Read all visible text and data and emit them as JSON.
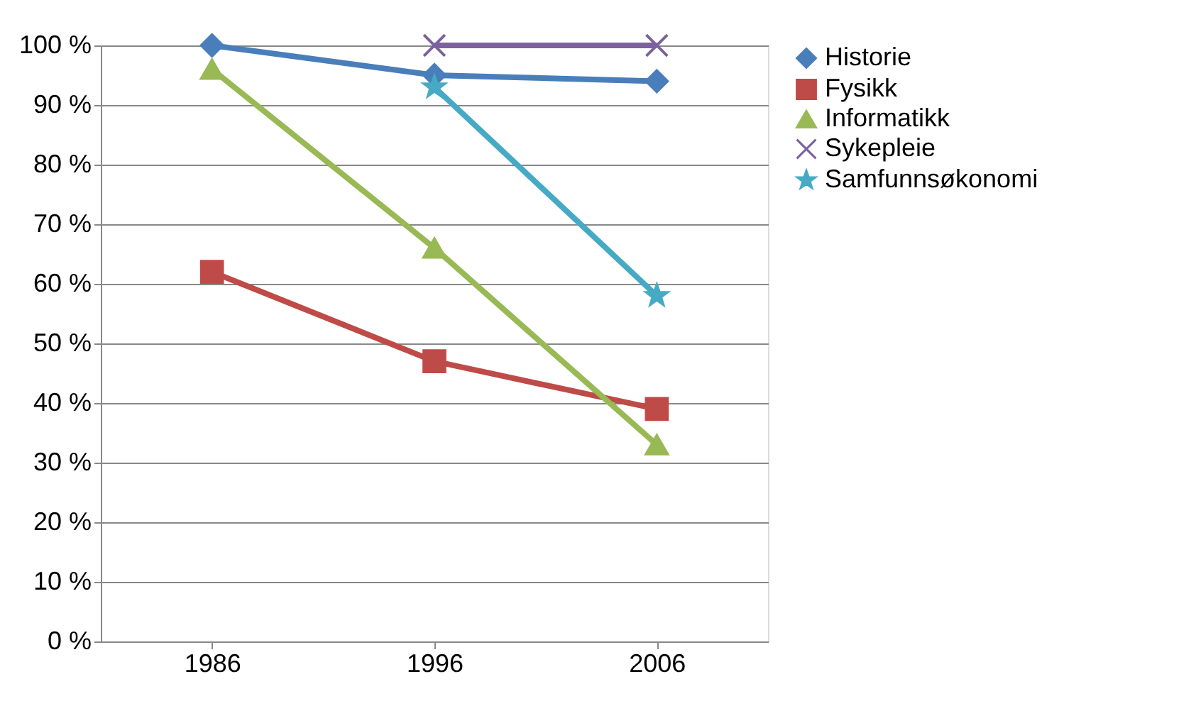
{
  "chart_data": {
    "type": "line",
    "categories": [
      "1986",
      "1996",
      "2006"
    ],
    "series": [
      {
        "name": "Historie",
        "color": "#4a7ebb",
        "marker": "diamond",
        "values": [
          100,
          95,
          94
        ]
      },
      {
        "name": "Fysikk",
        "color": "#be4b48",
        "marker": "square",
        "values": [
          62,
          47,
          39
        ]
      },
      {
        "name": "Informatikk",
        "color": "#98b954",
        "marker": "triangle",
        "values": [
          96,
          66,
          33
        ]
      },
      {
        "name": "Sykepleie",
        "color": "#7d60a0",
        "marker": "cross",
        "values": [
          null,
          100,
          100
        ]
      },
      {
        "name": "Samfunnsøkonomi",
        "color": "#46aac5",
        "marker": "star",
        "values": [
          null,
          93,
          58
        ]
      }
    ],
    "ylim": [
      0,
      100
    ],
    "yticks": [
      {
        "value": 0,
        "label": "0 %"
      },
      {
        "value": 10,
        "label": "10 %"
      },
      {
        "value": 20,
        "label": "20 %"
      },
      {
        "value": 30,
        "label": "30 %"
      },
      {
        "value": 40,
        "label": "40 %"
      },
      {
        "value": 50,
        "label": "50 %"
      },
      {
        "value": 60,
        "label": "60 %"
      },
      {
        "value": 70,
        "label": "70 %"
      },
      {
        "value": 80,
        "label": "80 %"
      },
      {
        "value": 90,
        "label": "90 %"
      },
      {
        "value": 100,
        "label": "100 %"
      }
    ],
    "grid": "y",
    "legend": "right",
    "line_style": "solid"
  }
}
